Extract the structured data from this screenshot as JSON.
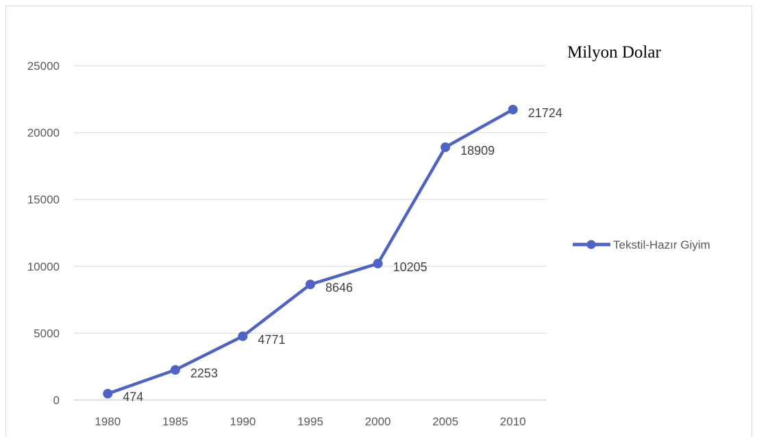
{
  "chart_data": {
    "type": "line",
    "title": "Milyon Dolar",
    "categories": [
      "1980",
      "1985",
      "1990",
      "1995",
      "2000",
      "2005",
      "2010"
    ],
    "series": [
      {
        "name": "Tekstil-Hazır Giyim",
        "values": [
          474,
          2253,
          4771,
          8646,
          10205,
          18909,
          21724
        ]
      }
    ],
    "data_labels": [
      "474",
      "2253",
      "4771",
      "8646",
      "10205",
      "18909",
      "21724"
    ],
    "y_ticks": [
      "0",
      "5000",
      "10000",
      "15000",
      "20000",
      "25000"
    ],
    "ylim": [
      0,
      25000
    ],
    "grid": true,
    "legend": "right",
    "colors": {
      "series": "#4f62c5",
      "grid": "#d9d9d9",
      "axis": "#bfbfbf"
    }
  }
}
